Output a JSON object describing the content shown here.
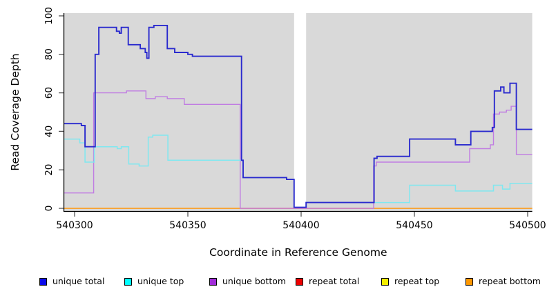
{
  "figure": {
    "background": "#ffffff"
  },
  "chart_data": {
    "type": "line",
    "subtype": "step-coverage",
    "title": "",
    "xlabel": "Coordinate in Reference Genome",
    "ylabel": "Read Coverage Depth",
    "xlim": [
      540295.4,
      540502
    ],
    "ylim": [
      0,
      100
    ],
    "xticks": [
      540300,
      540350,
      540400,
      540450,
      540500
    ],
    "yticks": [
      0,
      20,
      40,
      60,
      80,
      100
    ],
    "grid": false,
    "legend_position": "bottom",
    "panel_bg": "#d9d9d9",
    "axis_color": "#000000",
    "no_data_region": {
      "from": 540396.9,
      "to": 540402.2,
      "color": "#ffffff"
    },
    "series": [
      {
        "name": "unique total",
        "line_color": "#2a2ace",
        "legend_color": "#0b0bea",
        "line_width": 1.9,
        "steps": [
          [
            540295.4,
            44
          ],
          [
            540303,
            43
          ],
          [
            540304.6,
            32
          ],
          [
            540309.1,
            80
          ],
          [
            540310.7,
            94
          ],
          [
            540318.5,
            92
          ],
          [
            540319.8,
            91
          ],
          [
            540320.6,
            94
          ],
          [
            540323.7,
            85
          ],
          [
            540329,
            83
          ],
          [
            540331.2,
            81
          ],
          [
            540331.9,
            78
          ],
          [
            540332.8,
            94
          ],
          [
            540335,
            95
          ],
          [
            540340.9,
            83
          ],
          [
            540344.2,
            81
          ],
          [
            540350,
            80
          ],
          [
            540352,
            79
          ],
          [
            540373.7,
            25
          ],
          [
            540374.4,
            16
          ],
          [
            540393.6,
            15
          ],
          [
            540396.9,
            0.5
          ],
          [
            540402.2,
            3
          ],
          [
            540432.2,
            26
          ],
          [
            540433.5,
            27
          ],
          [
            540447.9,
            36
          ],
          [
            540468.1,
            33
          ],
          [
            540474.9,
            40
          ],
          [
            540484.4,
            42
          ],
          [
            540485.3,
            61
          ],
          [
            540488.1,
            63
          ],
          [
            540489.5,
            60
          ],
          [
            540492.2,
            65
          ],
          [
            540495,
            41
          ]
        ]
      },
      {
        "name": "unique top",
        "line_color": "#7fe8f0",
        "legend_color": "#00ffff",
        "line_width": 1.5,
        "steps": [
          [
            540295.4,
            36
          ],
          [
            540302.3,
            34
          ],
          [
            540304.6,
            24
          ],
          [
            540308.7,
            32
          ],
          [
            540318.8,
            31
          ],
          [
            540320.6,
            32
          ],
          [
            540323.9,
            23
          ],
          [
            540328.5,
            22
          ],
          [
            540332.5,
            37
          ],
          [
            540334.5,
            38
          ],
          [
            540341.2,
            25
          ],
          [
            540374.4,
            16
          ],
          [
            540393.6,
            15
          ],
          [
            540396.9,
            0.5
          ],
          [
            540402.2,
            3
          ],
          [
            540447.9,
            12
          ],
          [
            540468.1,
            9
          ],
          [
            540484.9,
            12
          ],
          [
            540488.9,
            10
          ],
          [
            540492.2,
            13
          ]
        ]
      },
      {
        "name": "unique bottom",
        "line_color": "#c07ce2",
        "legend_color": "#a12cd8",
        "line_width": 1.4,
        "steps": [
          [
            540295.4,
            8
          ],
          [
            540308.4,
            60
          ],
          [
            540322.9,
            61
          ],
          [
            540331.5,
            57
          ],
          [
            540335.6,
            58
          ],
          [
            540340.9,
            57
          ],
          [
            540348.4,
            54
          ],
          [
            540373.1,
            0
          ],
          [
            540432.0,
            22
          ],
          [
            540433.2,
            24
          ],
          [
            540474.4,
            31
          ],
          [
            540483.5,
            33
          ],
          [
            540484.9,
            49
          ],
          [
            540487.6,
            50
          ],
          [
            540490.6,
            51
          ],
          [
            540492.7,
            53
          ],
          [
            540495,
            28
          ]
        ]
      },
      {
        "name": "repeat total",
        "line_color": "#d4608c",
        "legend_color": "#ee0000",
        "line_width": 1.2,
        "steps": [
          [
            540295.4,
            0
          ]
        ]
      },
      {
        "name": "repeat top",
        "line_color": "#f5ef00",
        "legend_color": "#f5ef00",
        "line_width": 1.2,
        "steps": [
          [
            540295.4,
            0
          ]
        ]
      },
      {
        "name": "repeat bottom",
        "line_color": "#ff9e1b",
        "legend_color": "#ff9800",
        "line_width": 1.6,
        "steps": [
          [
            540295.4,
            0
          ]
        ]
      }
    ]
  }
}
